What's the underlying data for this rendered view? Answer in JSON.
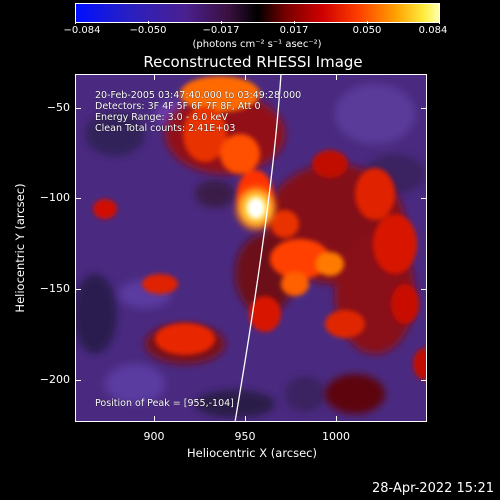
{
  "colorbar": {
    "ticks": [
      "−0.084",
      "−0.050",
      "−0.017",
      "0.017",
      "0.050",
      "0.084"
    ],
    "units": "(photons cm⁻² s⁻¹ asec⁻²)"
  },
  "title": "Reconstructed RHESSI Image",
  "info": {
    "line1": "20-Feb-2005 03:47:40.000 to 03:49:28.000",
    "line2": "Detectors: 3F 4F 5F 6F 7F 8F, Att 0",
    "line3": "Energy Range: 3.0 - 6.0 keV",
    "line4": "Clean    Total counts: 2.41E+03",
    "peak": "Position of Peak = [955,-104]"
  },
  "axes": {
    "xlabel": "Heliocentric X (arcsec)",
    "ylabel": "Heliocentric Y (arcsec)",
    "xticks": [
      "900",
      "950",
      "1000"
    ],
    "yticks": [
      "−50",
      "−100",
      "−150",
      "−200"
    ]
  },
  "timestamp": "28-Apr-2022 15:21",
  "colors": {
    "colormap": [
      "#0000ff",
      "#3a1fa0",
      "#5a2a8a",
      "#6a1a5a",
      "#b00000",
      "#ff3a00",
      "#ff9a00",
      "#ffee44",
      "#ffffff"
    ],
    "limb": "#ffffff"
  }
}
